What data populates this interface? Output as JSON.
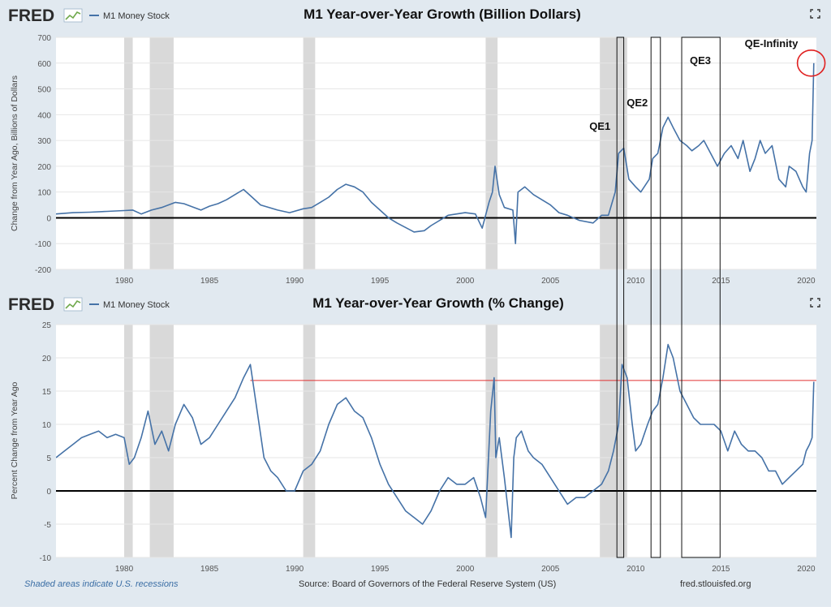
{
  "brand": {
    "logo_text": "FRED"
  },
  "footer": {
    "recession_note": "Shaded areas indicate U.S. recessions",
    "source": "Source: Board of Governors of the Federal Reserve System (US)",
    "site": "fred.stlouisfed.org"
  },
  "colors": {
    "series": "#4572a7",
    "recession": "#d9d9d9",
    "zero_line": "#000000",
    "ref_line": "#e03030",
    "highlight_circle": "#e02020"
  },
  "recessions": [
    [
      1980.0,
      1980.5
    ],
    [
      1981.5,
      1982.9
    ],
    [
      1990.5,
      1991.2
    ],
    [
      2001.2,
      2001.9
    ],
    [
      2007.9,
      2009.5
    ]
  ],
  "qe_periods": [
    {
      "label": "QE1",
      "start": 2008.9,
      "end": 2009.3
    },
    {
      "label": "QE2",
      "start": 2010.9,
      "end": 2011.45
    },
    {
      "label": "QE3",
      "start": 2012.7,
      "end": 2014.95
    },
    {
      "label": "QE-Infinity",
      "start": 2020.2,
      "end": 2020.5
    }
  ],
  "chart_data": [
    {
      "type": "line",
      "title": "M1 Year-over-Year Growth (Billion Dollars)",
      "legend": "M1 Money Stock",
      "ylabel": "Change from Year Ago, Billions of Dollars",
      "xlim": [
        1976,
        2020.6
      ],
      "ylim": [
        -200,
        700
      ],
      "yticks": [
        "700",
        "600",
        "500",
        "400",
        "300",
        "200",
        "100",
        "0",
        "-100",
        "-200"
      ],
      "xticks": [
        "1980",
        "1985",
        "1990",
        "1995",
        "2000",
        "2005",
        "2010",
        "2015",
        "2020"
      ],
      "series": [
        {
          "name": "M1 Money Stock",
          "x": [
            1976.0,
            1977.0,
            1978.0,
            1979.0,
            1980.0,
            1980.5,
            1981.0,
            1981.6,
            1982.2,
            1983.0,
            1983.5,
            1984.5,
            1985.0,
            1985.5,
            1986.0,
            1986.5,
            1987.0,
            1987.5,
            1988.0,
            1989.0,
            1989.7,
            1990.5,
            1991.0,
            1991.5,
            1992.0,
            1992.5,
            1993.0,
            1993.5,
            1994.0,
            1994.5,
            1995.0,
            1995.5,
            1996.0,
            1997.0,
            1997.6,
            1998.0,
            1999.0,
            2000.0,
            2000.6,
            2001.0,
            2001.4,
            2001.6,
            2001.75,
            2002.0,
            2002.3,
            2002.8,
            2002.95,
            2003.1,
            2003.5,
            2004.0,
            2004.5,
            2005.0,
            2005.5,
            2006.0,
            2006.7,
            2007.5,
            2008.0,
            2008.4,
            2008.8,
            2009.0,
            2009.3,
            2009.6,
            2010.0,
            2010.3,
            2010.8,
            2011.0,
            2011.3,
            2011.6,
            2011.9,
            2012.2,
            2012.6,
            2013.0,
            2013.3,
            2013.7,
            2014.0,
            2014.4,
            2014.8,
            2015.2,
            2015.6,
            2016.0,
            2016.3,
            2016.7,
            2017.0,
            2017.3,
            2017.6,
            2018.0,
            2018.4,
            2018.8,
            2019.0,
            2019.4,
            2019.8,
            2020.0,
            2020.2,
            2020.35,
            2020.45
          ],
          "values": [
            15,
            20,
            22,
            25,
            28,
            30,
            15,
            30,
            40,
            60,
            55,
            30,
            45,
            55,
            70,
            90,
            110,
            80,
            50,
            30,
            20,
            35,
            40,
            60,
            80,
            110,
            130,
            120,
            100,
            60,
            30,
            0,
            -20,
            -55,
            -50,
            -30,
            10,
            20,
            15,
            -40,
            60,
            100,
            200,
            90,
            40,
            30,
            -100,
            100,
            120,
            90,
            70,
            50,
            20,
            10,
            -10,
            -20,
            10,
            10,
            100,
            250,
            270,
            150,
            120,
            100,
            150,
            230,
            250,
            350,
            390,
            350,
            300,
            280,
            260,
            280,
            300,
            250,
            200,
            250,
            280,
            230,
            300,
            180,
            230,
            300,
            250,
            280,
            150,
            120,
            200,
            180,
            120,
            100,
            250,
            300,
            600
          ]
        }
      ]
    },
    {
      "type": "line",
      "title": "M1 Year-over-Year Growth (% Change)",
      "legend": "M1 Money Stock",
      "ylabel": "Percent Change from Year Ago",
      "xlim": [
        1976,
        2020.6
      ],
      "ylim": [
        -10,
        25
      ],
      "yticks": [
        "25",
        "20",
        "15",
        "10",
        "5",
        "0",
        "-5",
        "-10"
      ],
      "xticks": [
        "1980",
        "1985",
        "1990",
        "1995",
        "2000",
        "2005",
        "2010",
        "2015",
        "2020"
      ],
      "reference_line": {
        "value": 16.6,
        "x_start": 1987.4,
        "x_end": 2020.6
      },
      "series": [
        {
          "name": "M1 Money Stock",
          "x": [
            1976.0,
            1976.5,
            1977.0,
            1977.5,
            1978.0,
            1978.5,
            1979.0,
            1979.5,
            1980.0,
            1980.3,
            1980.6,
            1981.0,
            1981.4,
            1981.8,
            1982.2,
            1982.6,
            1983.0,
            1983.5,
            1984.0,
            1984.5,
            1985.0,
            1985.5,
            1986.0,
            1986.5,
            1987.0,
            1987.4,
            1987.8,
            1988.2,
            1988.6,
            1989.0,
            1989.5,
            1990.0,
            1990.5,
            1991.0,
            1991.5,
            1992.0,
            1992.5,
            1993.0,
            1993.5,
            1994.0,
            1994.5,
            1995.0,
            1995.5,
            1996.0,
            1996.5,
            1997.0,
            1997.5,
            1998.0,
            1998.5,
            1999.0,
            1999.5,
            2000.0,
            2000.5,
            2000.9,
            2001.2,
            2001.5,
            2001.7,
            2001.8,
            2002.0,
            2002.3,
            2002.7,
            2002.85,
            2003.0,
            2003.3,
            2003.7,
            2004.0,
            2004.5,
            2005.0,
            2005.5,
            2006.0,
            2006.5,
            2007.0,
            2007.5,
            2008.0,
            2008.4,
            2008.7,
            2009.0,
            2009.2,
            2009.5,
            2009.8,
            2010.0,
            2010.3,
            2010.7,
            2011.0,
            2011.3,
            2011.6,
            2011.9,
            2012.2,
            2012.6,
            2013.0,
            2013.4,
            2013.8,
            2014.2,
            2014.6,
            2015.0,
            2015.4,
            2015.8,
            2016.2,
            2016.6,
            2017.0,
            2017.4,
            2017.8,
            2018.2,
            2018.6,
            2019.0,
            2019.4,
            2019.8,
            2020.0,
            2020.2,
            2020.35,
            2020.45
          ],
          "values": [
            5,
            6,
            7,
            8,
            8.5,
            9,
            8,
            8.5,
            8,
            4,
            5,
            8,
            12,
            7,
            9,
            6,
            10,
            13,
            11,
            7,
            8,
            10,
            12,
            14,
            17,
            19,
            12,
            5,
            3,
            2,
            0,
            0,
            3,
            4,
            6,
            10,
            13,
            14,
            12,
            11,
            8,
            4,
            1,
            -1,
            -3,
            -4,
            -5,
            -3,
            0,
            2,
            1,
            1,
            2,
            -1,
            -4,
            12,
            17,
            5,
            8,
            2,
            -7,
            5,
            8,
            9,
            6,
            5,
            4,
            2,
            0,
            -2,
            -1,
            -1,
            0,
            1,
            3,
            6,
            10,
            19,
            17,
            10,
            6,
            7,
            10,
            12,
            13,
            17,
            22,
            20,
            15,
            13,
            11,
            10,
            10,
            10,
            9,
            6,
            9,
            7,
            6,
            6,
            5,
            3,
            3,
            1,
            2,
            3,
            4,
            6,
            7,
            8,
            16.4
          ]
        }
      ]
    }
  ]
}
